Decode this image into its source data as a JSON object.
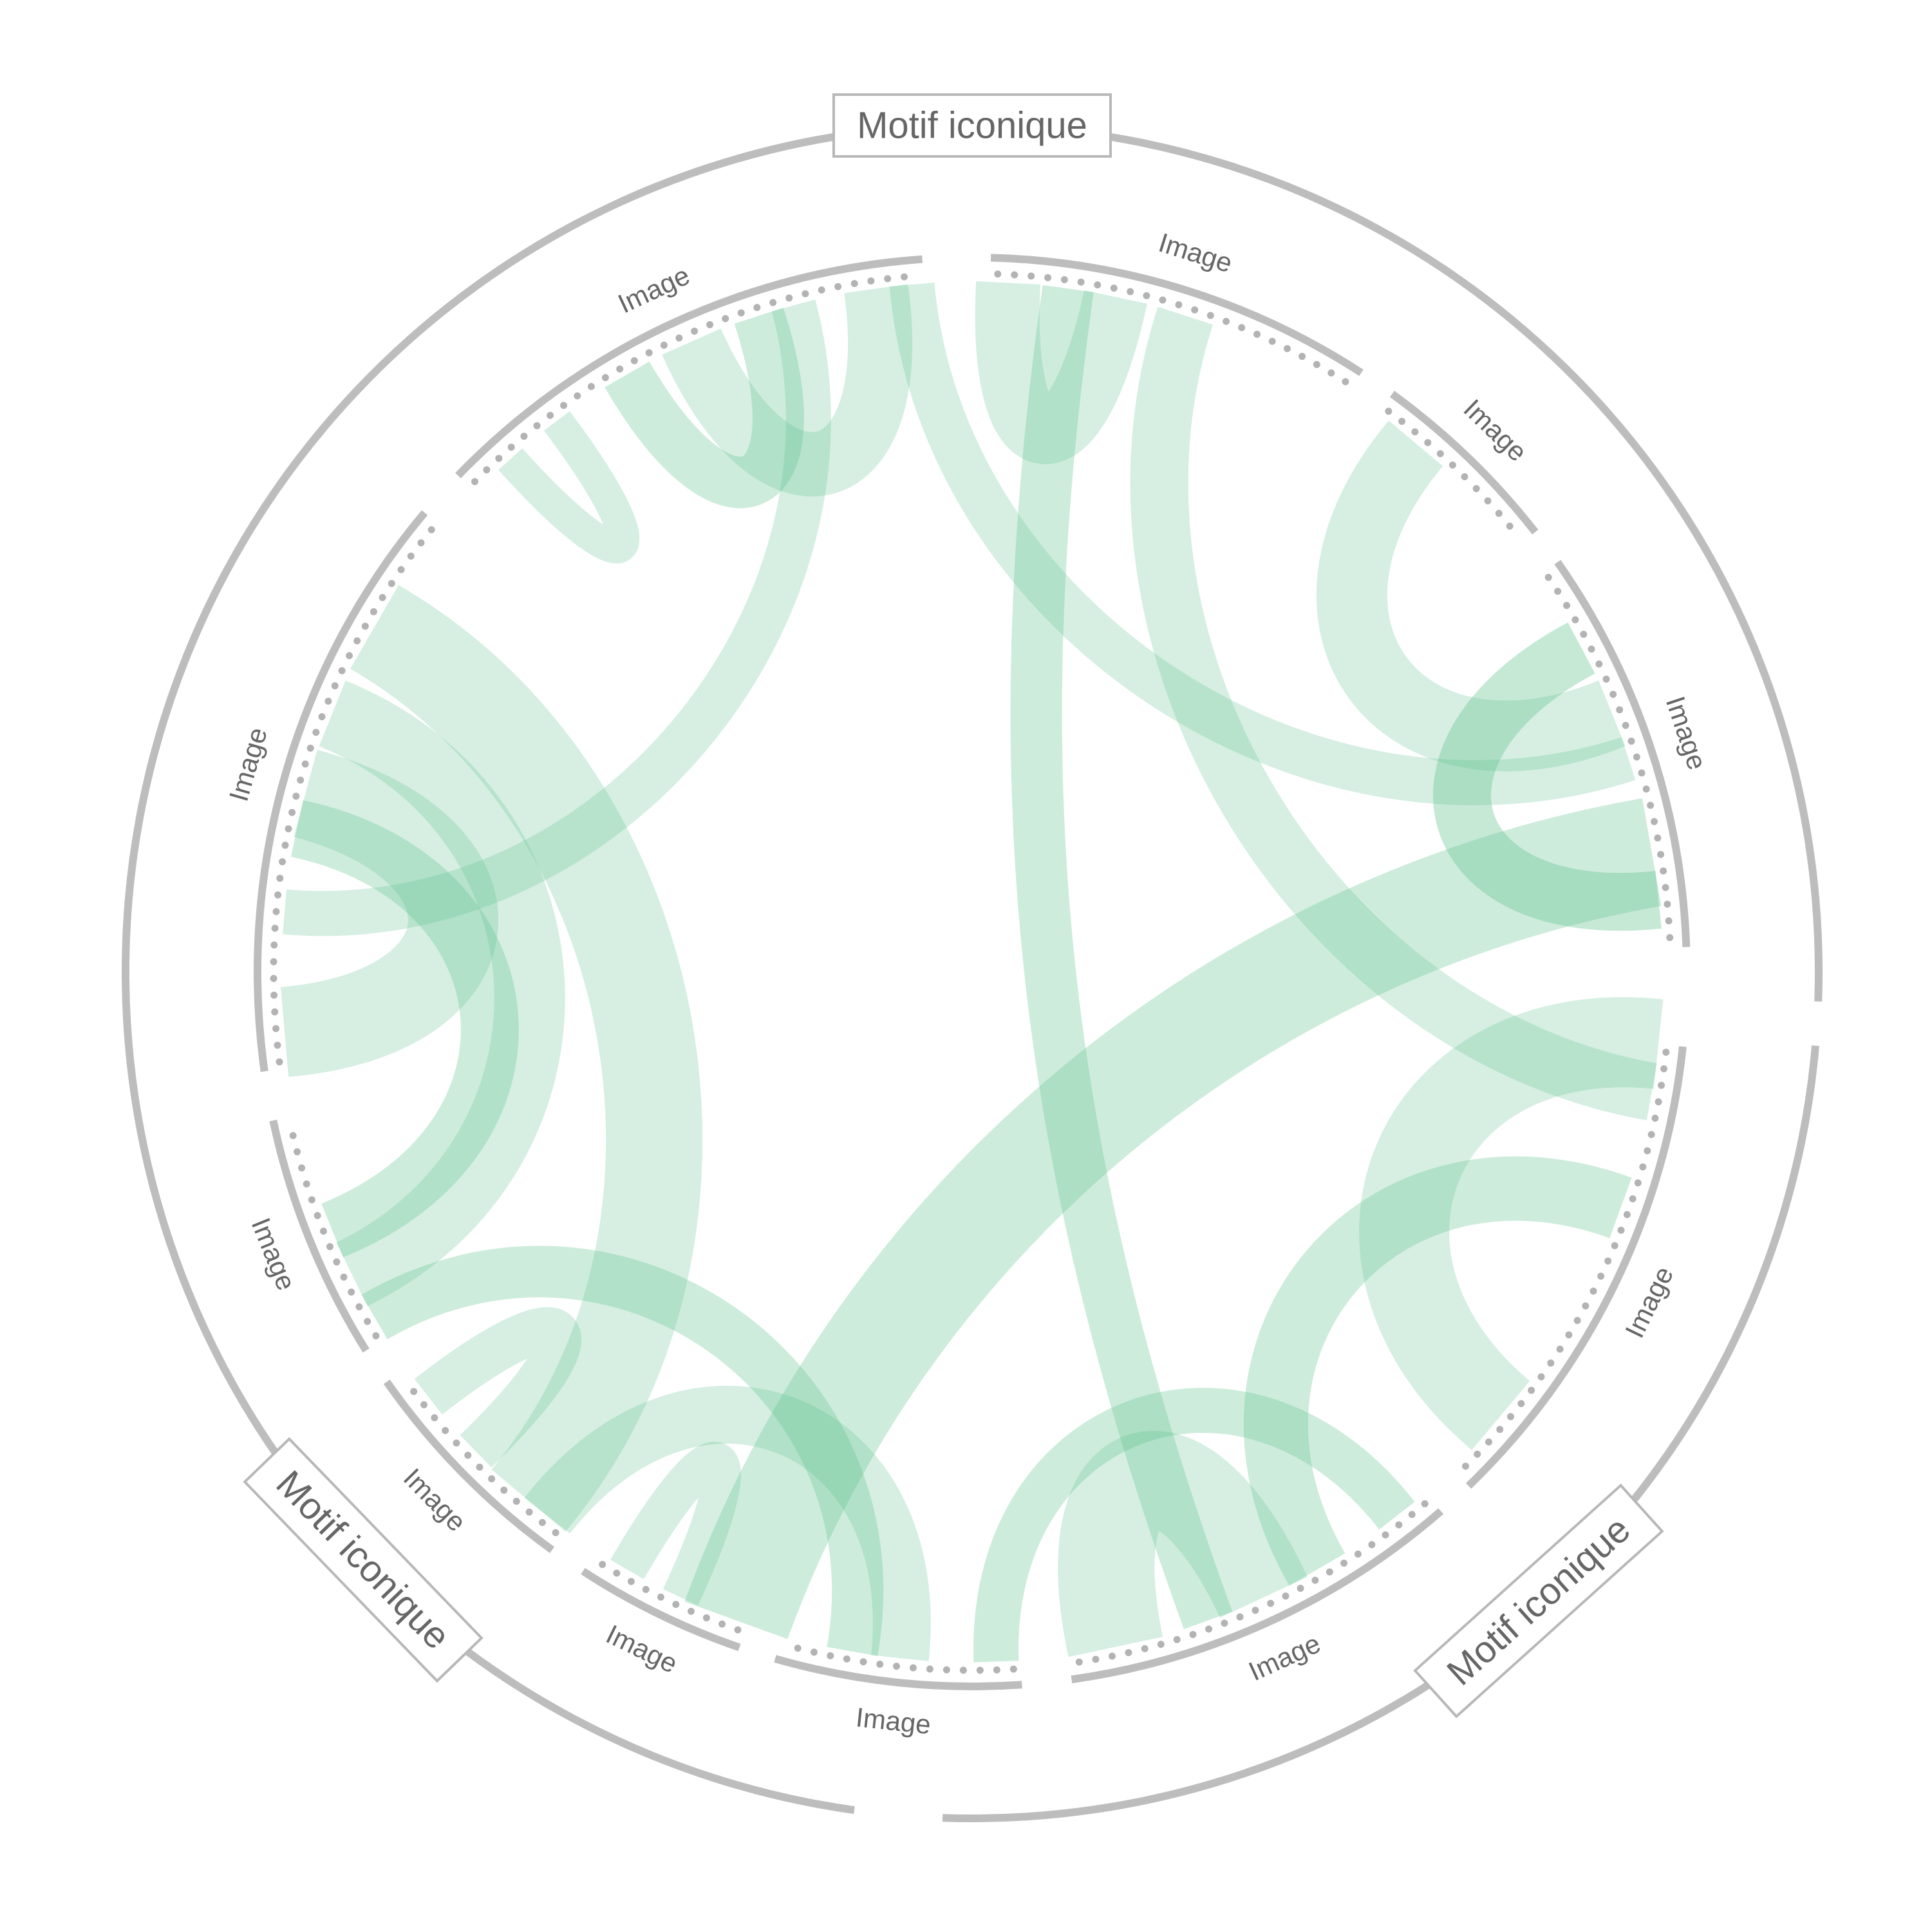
{
  "groups": [
    {
      "label": "Motif iconique",
      "start": -2,
      "end": 92
    },
    {
      "label": "Motif iconique",
      "start": 95,
      "end": 182
    },
    {
      "label": "Motif iconique",
      "start": 188,
      "end": 355
    }
  ],
  "categories": [
    {
      "label": "Image",
      "start": 1.5,
      "end": 33
    },
    {
      "label": "Image",
      "start": 36,
      "end": 52
    },
    {
      "label": "Image",
      "start": 55,
      "end": 88
    },
    {
      "label": "Image",
      "start": 96,
      "end": 136
    },
    {
      "label": "Image",
      "start": 139,
      "end": 172
    },
    {
      "label": "Image",
      "start": 176,
      "end": 196
    },
    {
      "label": "Image",
      "start": 199,
      "end": 213
    },
    {
      "label": "Image",
      "start": 216,
      "end": 235
    },
    {
      "label": "Image",
      "start": 238,
      "end": 258
    },
    {
      "label": "Image",
      "start": 262,
      "end": 310
    },
    {
      "label": "Image",
      "start": 314,
      "end": 356
    }
  ],
  "ribbon_color": "#5cc08a",
  "ring_color": "#bdbdbd",
  "ribbons": [
    {
      "a": 355,
      "b": 72,
      "w": 70,
      "o": 0.25
    },
    {
      "a": 3,
      "b": 12,
      "w": 100,
      "o": 0.25
    },
    {
      "a": 8,
      "b": 160,
      "w": 80,
      "o": 0.3
    },
    {
      "a": 18,
      "b": 100,
      "w": 90,
      "o": 0.25
    },
    {
      "a": 40,
      "b": 68,
      "w": 110,
      "o": 0.25
    },
    {
      "a": 62,
      "b": 84,
      "w": 90,
      "o": 0.35
    },
    {
      "a": 80,
      "b": 200,
      "w": 170,
      "o": 0.3
    },
    {
      "a": 96,
      "b": 130,
      "w": 140,
      "o": 0.25
    },
    {
      "a": 110,
      "b": 150,
      "w": 100,
      "o": 0.3
    },
    {
      "a": 142,
      "b": 178,
      "w": 70,
      "o": 0.3
    },
    {
      "a": 155,
      "b": 168,
      "w": 150,
      "o": 0.25
    },
    {
      "a": 186,
      "b": 218,
      "w": 90,
      "o": 0.25
    },
    {
      "a": 190,
      "b": 240,
      "w": 80,
      "o": 0.3
    },
    {
      "a": 205,
      "b": 210,
      "w": 60,
      "o": 0.25
    },
    {
      "a": 220,
      "b": 300,
      "w": 150,
      "o": 0.25
    },
    {
      "a": 226,
      "b": 232,
      "w": 70,
      "o": 0.25
    },
    {
      "a": 244,
      "b": 292,
      "w": 110,
      "o": 0.25
    },
    {
      "a": 248,
      "b": 282,
      "w": 90,
      "o": 0.3
    },
    {
      "a": 265,
      "b": 285,
      "w": 140,
      "o": 0.25
    },
    {
      "a": 275,
      "b": 345,
      "w": 70,
      "o": 0.25
    },
    {
      "a": 318,
      "b": 323,
      "w": 50,
      "o": 0.25
    },
    {
      "a": 330,
      "b": 342,
      "w": 80,
      "o": 0.3
    },
    {
      "a": 336,
      "b": 352,
      "w": 100,
      "o": 0.25
    }
  ]
}
